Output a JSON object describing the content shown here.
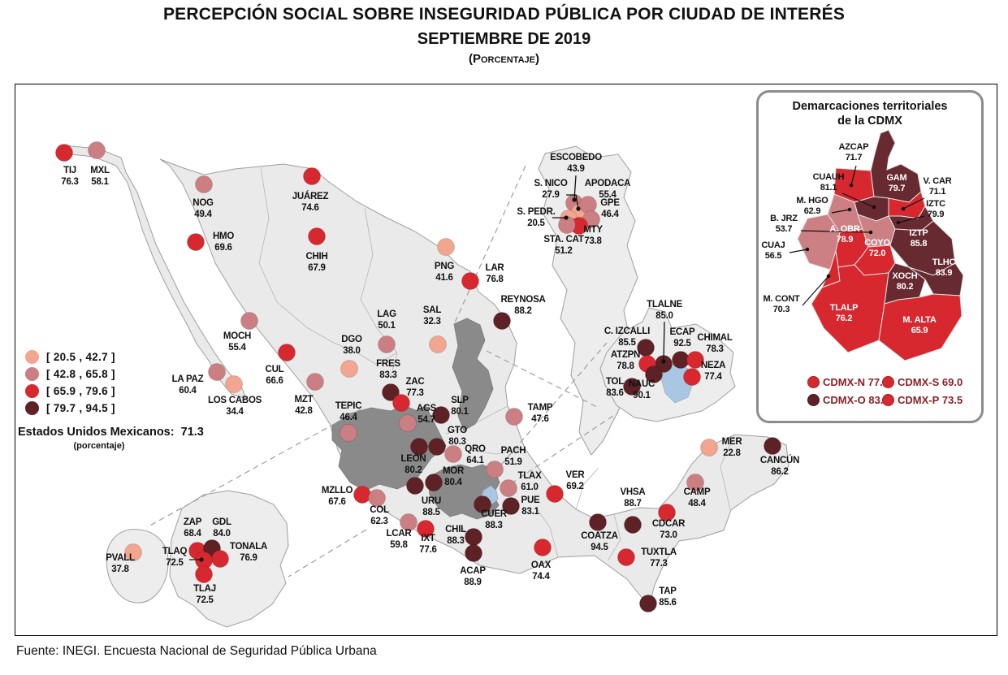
{
  "title": {
    "line1": "PERCEPCIÓN SOCIAL SOBRE INSEGURIDAD PÚBLICA POR CIUDAD DE INTERÉS",
    "line2": "SEPTIEMBRE DE 2019",
    "line3": "(Porcentaje)"
  },
  "source": "Fuente: INEGI. Encuesta Nacional de Seguridad Pública Urbana",
  "legend": {
    "ranges": [
      {
        "label": "[ 20.5 , 42.7 ]",
        "color": "#F2A58F"
      },
      {
        "label": "[ 42.8 , 65.8 ]",
        "color": "#CC7F82"
      },
      {
        "label": "[ 65.9 , 79.6 ]",
        "color": "#D7282F"
      },
      {
        "label": "[ 79.7 , 94.5 ]",
        "color": "#5E2125"
      }
    ],
    "national_label": "Estados Unidos Mexicanos:",
    "national_value": "71.3",
    "national_note": "(porcentaje)"
  },
  "map": {
    "cities": [
      {
        "n": "TIJ",
        "v": "76.3",
        "c": 3,
        "d": [
          60,
          84
        ],
        "l": [
          67,
          109
        ]
      },
      {
        "n": "MXL",
        "v": "58.1",
        "c": 2,
        "d": [
          100,
          81
        ],
        "l": [
          104,
          109
        ]
      },
      {
        "n": "NOG",
        "v": "49.4",
        "c": 2,
        "d": [
          232,
          123
        ],
        "l": [
          231,
          149
        ]
      },
      {
        "n": "HMO",
        "v": "69.6",
        "c": 3,
        "d": [
          222,
          194
        ],
        "l": [
          256,
          190
        ]
      },
      {
        "n": "JUÁREZ",
        "v": "74.6",
        "c": 3,
        "d": [
          365,
          113
        ],
        "l": [
          363,
          141
        ]
      },
      {
        "n": "CHIH",
        "v": "67.9",
        "c": 3,
        "d": [
          371,
          187
        ],
        "l": [
          371,
          215
        ]
      },
      {
        "n": "PNG",
        "v": "41.6",
        "c": 1,
        "d": [
          530,
          200
        ],
        "l": [
          528,
          227
        ]
      },
      {
        "n": "LAR",
        "v": "76.8",
        "c": 3,
        "d": [
          560,
          242
        ],
        "l": [
          590,
          229
        ]
      },
      {
        "n": "REYNOSA",
        "v": "88.2",
        "c": 4,
        "d": [
          599,
          291
        ],
        "l": [
          625,
          268
        ]
      },
      {
        "n": "LAG",
        "v": "50.1",
        "c": 2,
        "d": [
          457,
          320
        ],
        "l": [
          457,
          286
        ]
      },
      {
        "n": "SAL",
        "v": "32.3",
        "c": 1,
        "d": [
          520,
          320
        ],
        "l": [
          513,
          281
        ]
      },
      {
        "n": "DGO",
        "v": "38.0",
        "c": 1,
        "d": [
          411,
          350
        ],
        "l": [
          414,
          317
        ]
      },
      {
        "n": "MOCH",
        "v": "55.4",
        "c": 2,
        "d": [
          288,
          291
        ],
        "l": [
          273,
          313
        ]
      },
      {
        "n": "CUL",
        "v": "66.6",
        "c": 3,
        "d": [
          334,
          330
        ],
        "l": [
          319,
          354
        ]
      },
      {
        "n": "LA PAZ",
        "v": "60.4",
        "c": 2,
        "d": [
          248,
          354
        ],
        "l": [
          212,
          366
        ]
      },
      {
        "n": "LOS CABOS",
        "v": "34.4",
        "c": 1,
        "d": [
          269,
          369
        ],
        "l": [
          270,
          392
        ]
      },
      {
        "n": "MZT",
        "v": "42.8",
        "c": 2,
        "d": [
          369,
          366
        ],
        "l": [
          355,
          391
        ]
      },
      {
        "n": "TEPIC",
        "v": "46.4",
        "c": 2,
        "d": [
          410,
          429
        ],
        "l": [
          410,
          399
        ]
      },
      {
        "n": "FRES",
        "v": "83.3",
        "c": 4,
        "d": [
          462,
          379
        ],
        "l": [
          459,
          347
        ]
      },
      {
        "n": "ZAC",
        "v": "77.3",
        "c": 3,
        "d": [
          475,
          392
        ],
        "l": [
          492,
          369
        ]
      },
      {
        "n": "AGS",
        "v": "54.7",
        "c": 2,
        "d": [
          483,
          417
        ],
        "l": [
          506,
          402
        ]
      },
      {
        "n": "SLP",
        "v": "80.1",
        "c": 4,
        "d": [
          524,
          407
        ],
        "l": [
          547,
          392
        ]
      },
      {
        "n": "GTO",
        "v": "80.3",
        "c": 4,
        "d": [
          519,
          446
        ],
        "l": [
          544,
          429
        ]
      },
      {
        "n": "QRO",
        "v": "64.1",
        "c": 2,
        "d": [
          539,
          455
        ],
        "l": [
          566,
          452
        ]
      },
      {
        "n": "LEÓN",
        "v": "80.2",
        "c": 4,
        "d": [
          497,
          446
        ],
        "l": [
          490,
          464
        ]
      },
      {
        "n": "MOR",
        "v": "80.4",
        "c": 4,
        "d": [
          515,
          490
        ],
        "l": [
          539,
          479
        ]
      },
      {
        "n": "URU",
        "v": "88.5",
        "c": 4,
        "d": [
          492,
          494
        ],
        "l": [
          512,
          516
        ]
      },
      {
        "n": "MZLLO",
        "v": "67.6",
        "c": 3,
        "d": [
          427,
          505
        ],
        "l": [
          396,
          503
        ]
      },
      {
        "n": "COL",
        "v": "62.3",
        "c": 2,
        "d": [
          445,
          509
        ],
        "l": [
          448,
          527
        ]
      },
      {
        "n": "LCAR",
        "v": "59.8",
        "c": 2,
        "d": [
          484,
          539
        ],
        "l": [
          472,
          556
        ]
      },
      {
        "n": "IXT",
        "v": "77.6",
        "c": 3,
        "d": [
          505,
          547
        ],
        "l": [
          508,
          562
        ]
      },
      {
        "n": "CHIL",
        "v": "88.3",
        "c": 4,
        "d": [
          564,
          557
        ],
        "l": [
          542,
          551
        ]
      },
      {
        "n": "ACAP",
        "v": "88.9",
        "c": 4,
        "d": [
          564,
          577
        ],
        "l": [
          563,
          602
        ]
      },
      {
        "n": "OAX",
        "v": "74.4",
        "c": 3,
        "d": [
          649,
          570
        ],
        "l": [
          647,
          595
        ]
      },
      {
        "n": "CUER",
        "v": "88.3",
        "c": 4,
        "d": [
          575,
          517
        ],
        "l": [
          589,
          532
        ]
      },
      {
        "n": "PUE",
        "v": "83.1",
        "c": 4,
        "d": [
          610,
          519
        ],
        "l": [
          634,
          515
        ]
      },
      {
        "n": "TLAX",
        "v": "61.0",
        "c": 2,
        "d": [
          607,
          497
        ],
        "l": [
          633,
          485
        ]
      },
      {
        "n": "PACH",
        "v": "51.9",
        "c": 2,
        "d": [
          590,
          474
        ],
        "l": [
          613,
          454
        ]
      },
      {
        "n": "TAMP",
        "v": "47.6",
        "c": 2,
        "d": [
          614,
          409
        ],
        "l": [
          646,
          401
        ]
      },
      {
        "n": "VER",
        "v": "69.2",
        "c": 3,
        "d": [
          664,
          504
        ],
        "l": [
          689,
          484
        ]
      },
      {
        "n": "COATZA",
        "v": "94.5",
        "c": 4,
        "d": [
          717,
          539
        ],
        "l": [
          719,
          559
        ]
      },
      {
        "n": "VHSA",
        "v": "88.7",
        "c": 4,
        "d": [
          760,
          542
        ],
        "l": [
          760,
          505
        ]
      },
      {
        "n": "CDCAR",
        "v": "73.0",
        "c": 3,
        "d": [
          802,
          527
        ],
        "l": [
          804,
          544
        ]
      },
      {
        "n": "TUXTLA",
        "v": "77.3",
        "c": 3,
        "d": [
          752,
          582
        ],
        "l": [
          792,
          579
        ]
      },
      {
        "n": "TAP",
        "v": "85.6",
        "c": 4,
        "d": [
          779,
          639
        ],
        "l": [
          803,
          627
        ]
      },
      {
        "n": "CAMP",
        "v": "48.4",
        "c": 2,
        "d": [
          837,
          490
        ],
        "l": [
          839,
          505
        ]
      },
      {
        "n": "MER",
        "v": "22.8",
        "c": 1,
        "d": [
          854,
          447
        ],
        "l": [
          882,
          443
        ]
      },
      {
        "n": "CANCÚN",
        "v": "86.2",
        "c": 4,
        "d": [
          932,
          445
        ],
        "l": [
          941,
          466
        ]
      },
      {
        "n": "ESCOBEDO",
        "v": "43.9",
        "c": 2,
        "d": [
          688,
          146
        ],
        "l": [
          690,
          93
        ],
        "ld": [
          [
            690,
            112
          ],
          [
            688,
            142
          ]
        ]
      },
      {
        "n": "S. NICO",
        "v": "27.9",
        "c": 1,
        "d": [
          695,
          157
        ],
        "l": [
          659,
          125
        ],
        "ld": [
          [
            678,
            136
          ],
          [
            690,
            136
          ],
          [
            693,
            153
          ]
        ]
      },
      {
        "n": "APODACA",
        "v": "55.4",
        "c": 2,
        "d": [
          705,
          148
        ],
        "l": [
          729,
          125
        ]
      },
      {
        "n": "GPE",
        "v": "46.4",
        "c": 2,
        "d": [
          709,
          166
        ],
        "l": [
          732,
          149
        ]
      },
      {
        "n": "S. PEDR.",
        "v": "20.5",
        "c": 1,
        "d": [
          681,
          165
        ],
        "l": [
          641,
          160
        ],
        "ld": [
          [
            661,
            164
          ],
          [
            678,
            164
          ]
        ]
      },
      {
        "n": "MTY",
        "v": "73.8",
        "c": 3,
        "d": [
          694,
          174
        ],
        "l": [
          711,
          182
        ]
      },
      {
        "n": "STA. CAT",
        "v": "51.2",
        "c": 2,
        "d": [
          679,
          173
        ],
        "l": [
          675,
          194
        ]
      },
      {
        "n": "C. IZCALLI",
        "v": "85.5",
        "c": 4,
        "d": [
          776,
          324
        ],
        "l": [
          753,
          307
        ]
      },
      {
        "n": "TLALNE",
        "v": "85.0",
        "c": 4,
        "d": [
          798,
          344
        ],
        "l": [
          799,
          274
        ],
        "ld": [
          [
            799,
            292
          ],
          [
            798,
            341
          ]
        ]
      },
      {
        "n": "ECAP",
        "v": "92.5",
        "c": 4,
        "d": [
          819,
          339
        ],
        "l": [
          821,
          308
        ]
      },
      {
        "n": "CHIMAL",
        "v": "78.3",
        "c": 3,
        "d": [
          837,
          339
        ],
        "l": [
          861,
          315
        ]
      },
      {
        "n": "ATZPN",
        "v": "78.8",
        "c": 3,
        "d": [
          778,
          344
        ],
        "l": [
          751,
          336
        ]
      },
      {
        "n": "NEZA",
        "v": "77.4",
        "c": 3,
        "d": [
          833,
          360
        ],
        "l": [
          859,
          349
        ]
      },
      {
        "n": "NAUC",
        "v": "90.1",
        "c": 4,
        "d": [
          786,
          357
        ],
        "l": [
          771,
          372
        ]
      },
      {
        "n": "TOL",
        "v": "83.6",
        "c": 4,
        "d": [
          759,
          372
        ],
        "l": [
          738,
          369
        ]
      },
      {
        "n": "ZAP",
        "v": "68.4",
        "c": 3,
        "d": [
          224,
          574
        ],
        "l": [
          218,
          542
        ]
      },
      {
        "n": "GDL",
        "v": "84.0",
        "c": 4,
        "d": [
          242,
          571
        ],
        "l": [
          254,
          542
        ]
      },
      {
        "n": "TONALA",
        "v": "76.9",
        "c": 3,
        "d": [
          252,
          584
        ],
        "l": [
          287,
          572
        ]
      },
      {
        "n": "TLAQ",
        "v": "72.5",
        "c": 3,
        "d": [
          232,
          586
        ],
        "l": [
          196,
          578
        ],
        "ld": [
          [
            214,
            585
          ],
          [
            229,
            585
          ]
        ]
      },
      {
        "n": "TLAJ",
        "v": "72.5",
        "c": 3,
        "d": [
          232,
          603
        ],
        "l": [
          233,
          624
        ]
      },
      {
        "n": "PVALL",
        "v": "37.8",
        "c": 1,
        "d": [
          145,
          576
        ],
        "l": [
          129,
          586
        ]
      }
    ]
  },
  "cdmx_inset": {
    "title_line1": "Demarcaciones territoriales",
    "title_line2": "de la CDMX",
    "palette": {
      "red": "#D7282F",
      "pink": "#CC8084",
      "dark": "#672A30"
    },
    "boroughs": [
      {
        "id": "azcap",
        "n": "AZCAP",
        "v": "71.7",
        "color": "red",
        "text": "b",
        "l": [
          117,
          70
        ],
        "ld": [
          [
            120,
            90
          ],
          [
            114,
            114
          ]
        ]
      },
      {
        "id": "gam",
        "n": "GAM",
        "v": "79.7",
        "color": "dark",
        "text": "w",
        "l": [
          170,
          108
        ]
      },
      {
        "id": "cuauh",
        "n": "CUAUH",
        "v": "81.1",
        "color": "dark",
        "text": "b",
        "l": [
          86,
          107
        ],
        "ld": [
          [
            103,
            124
          ],
          [
            142,
            141
          ]
        ]
      },
      {
        "id": "vcar",
        "n": "V. CAR",
        "v": "71.1",
        "color": "red",
        "text": "b",
        "l": [
          220,
          112
        ],
        "ld": [
          [
            204,
            130
          ],
          [
            178,
            143
          ]
        ]
      },
      {
        "id": "mhgo",
        "n": "M. HGO",
        "v": "62.9",
        "color": "pink",
        "text": "b",
        "l": [
          66,
          136
        ],
        "ld": [
          [
            90,
            148
          ],
          [
            112,
            144
          ]
        ]
      },
      {
        "id": "iztc",
        "n": "IZTC",
        "v": "79.9",
        "color": "dark",
        "text": "b",
        "l": [
          218,
          140
        ],
        "ld": [
          [
            204,
            152
          ],
          [
            172,
            160
          ]
        ]
      },
      {
        "id": "bjrz",
        "n": "B. JRZ",
        "v": "53.7",
        "color": "pink",
        "text": "b",
        "l": [
          31,
          158
        ],
        "ld": [
          [
            52,
            170
          ],
          [
            138,
            172
          ]
        ]
      },
      {
        "id": "aobr",
        "n": "A. OBR",
        "v": "78.9",
        "color": "red",
        "text": "w",
        "l": [
          106,
          171
        ]
      },
      {
        "id": "coyo",
        "n": "COYO",
        "v": "72.0",
        "color": "red",
        "text": "w",
        "l": [
          146,
          188
        ]
      },
      {
        "id": "cuaj",
        "n": "CUAJ",
        "v": "56.5",
        "color": "pink",
        "text": "b",
        "l": [
          18,
          191
        ],
        "ld": [
          [
            38,
            197
          ],
          [
            60,
            193
          ]
        ]
      },
      {
        "id": "iztp",
        "n": "IZTP",
        "v": "85.8",
        "color": "dark",
        "text": "w",
        "l": [
          197,
          176
        ]
      },
      {
        "id": "tlhc",
        "n": "TLHC",
        "v": "83.9",
        "color": "dark",
        "text": "w",
        "l": [
          228,
          212
        ]
      },
      {
        "id": "xoch",
        "n": "XOCH",
        "v": "80.2",
        "color": "dark",
        "text": "w",
        "l": [
          180,
          229
        ]
      },
      {
        "id": "mcont",
        "n": "M. CONT",
        "v": "70.3",
        "color": "red",
        "text": "b",
        "l": [
          28,
          257
        ],
        "ld": [
          [
            54,
            262
          ],
          [
            86,
            226
          ]
        ]
      },
      {
        "id": "tlalp",
        "n": "TLALP",
        "v": "76.2",
        "color": "red",
        "text": "w",
        "l": [
          105,
          268
        ]
      },
      {
        "id": "malta",
        "n": "M. ALTA",
        "v": "65.9",
        "color": "red",
        "text": "w",
        "l": [
          198,
          283
        ]
      }
    ],
    "legend": [
      {
        "name": "CDMX-N",
        "value": "77.8",
        "cat": 3
      },
      {
        "name": "CDMX-S",
        "value": "69.0",
        "cat": 3
      },
      {
        "name": "CDMX-O",
        "value": "83.7",
        "cat": 4
      },
      {
        "name": "CDMX-P",
        "value": "73.5",
        "cat": 3
      }
    ]
  }
}
